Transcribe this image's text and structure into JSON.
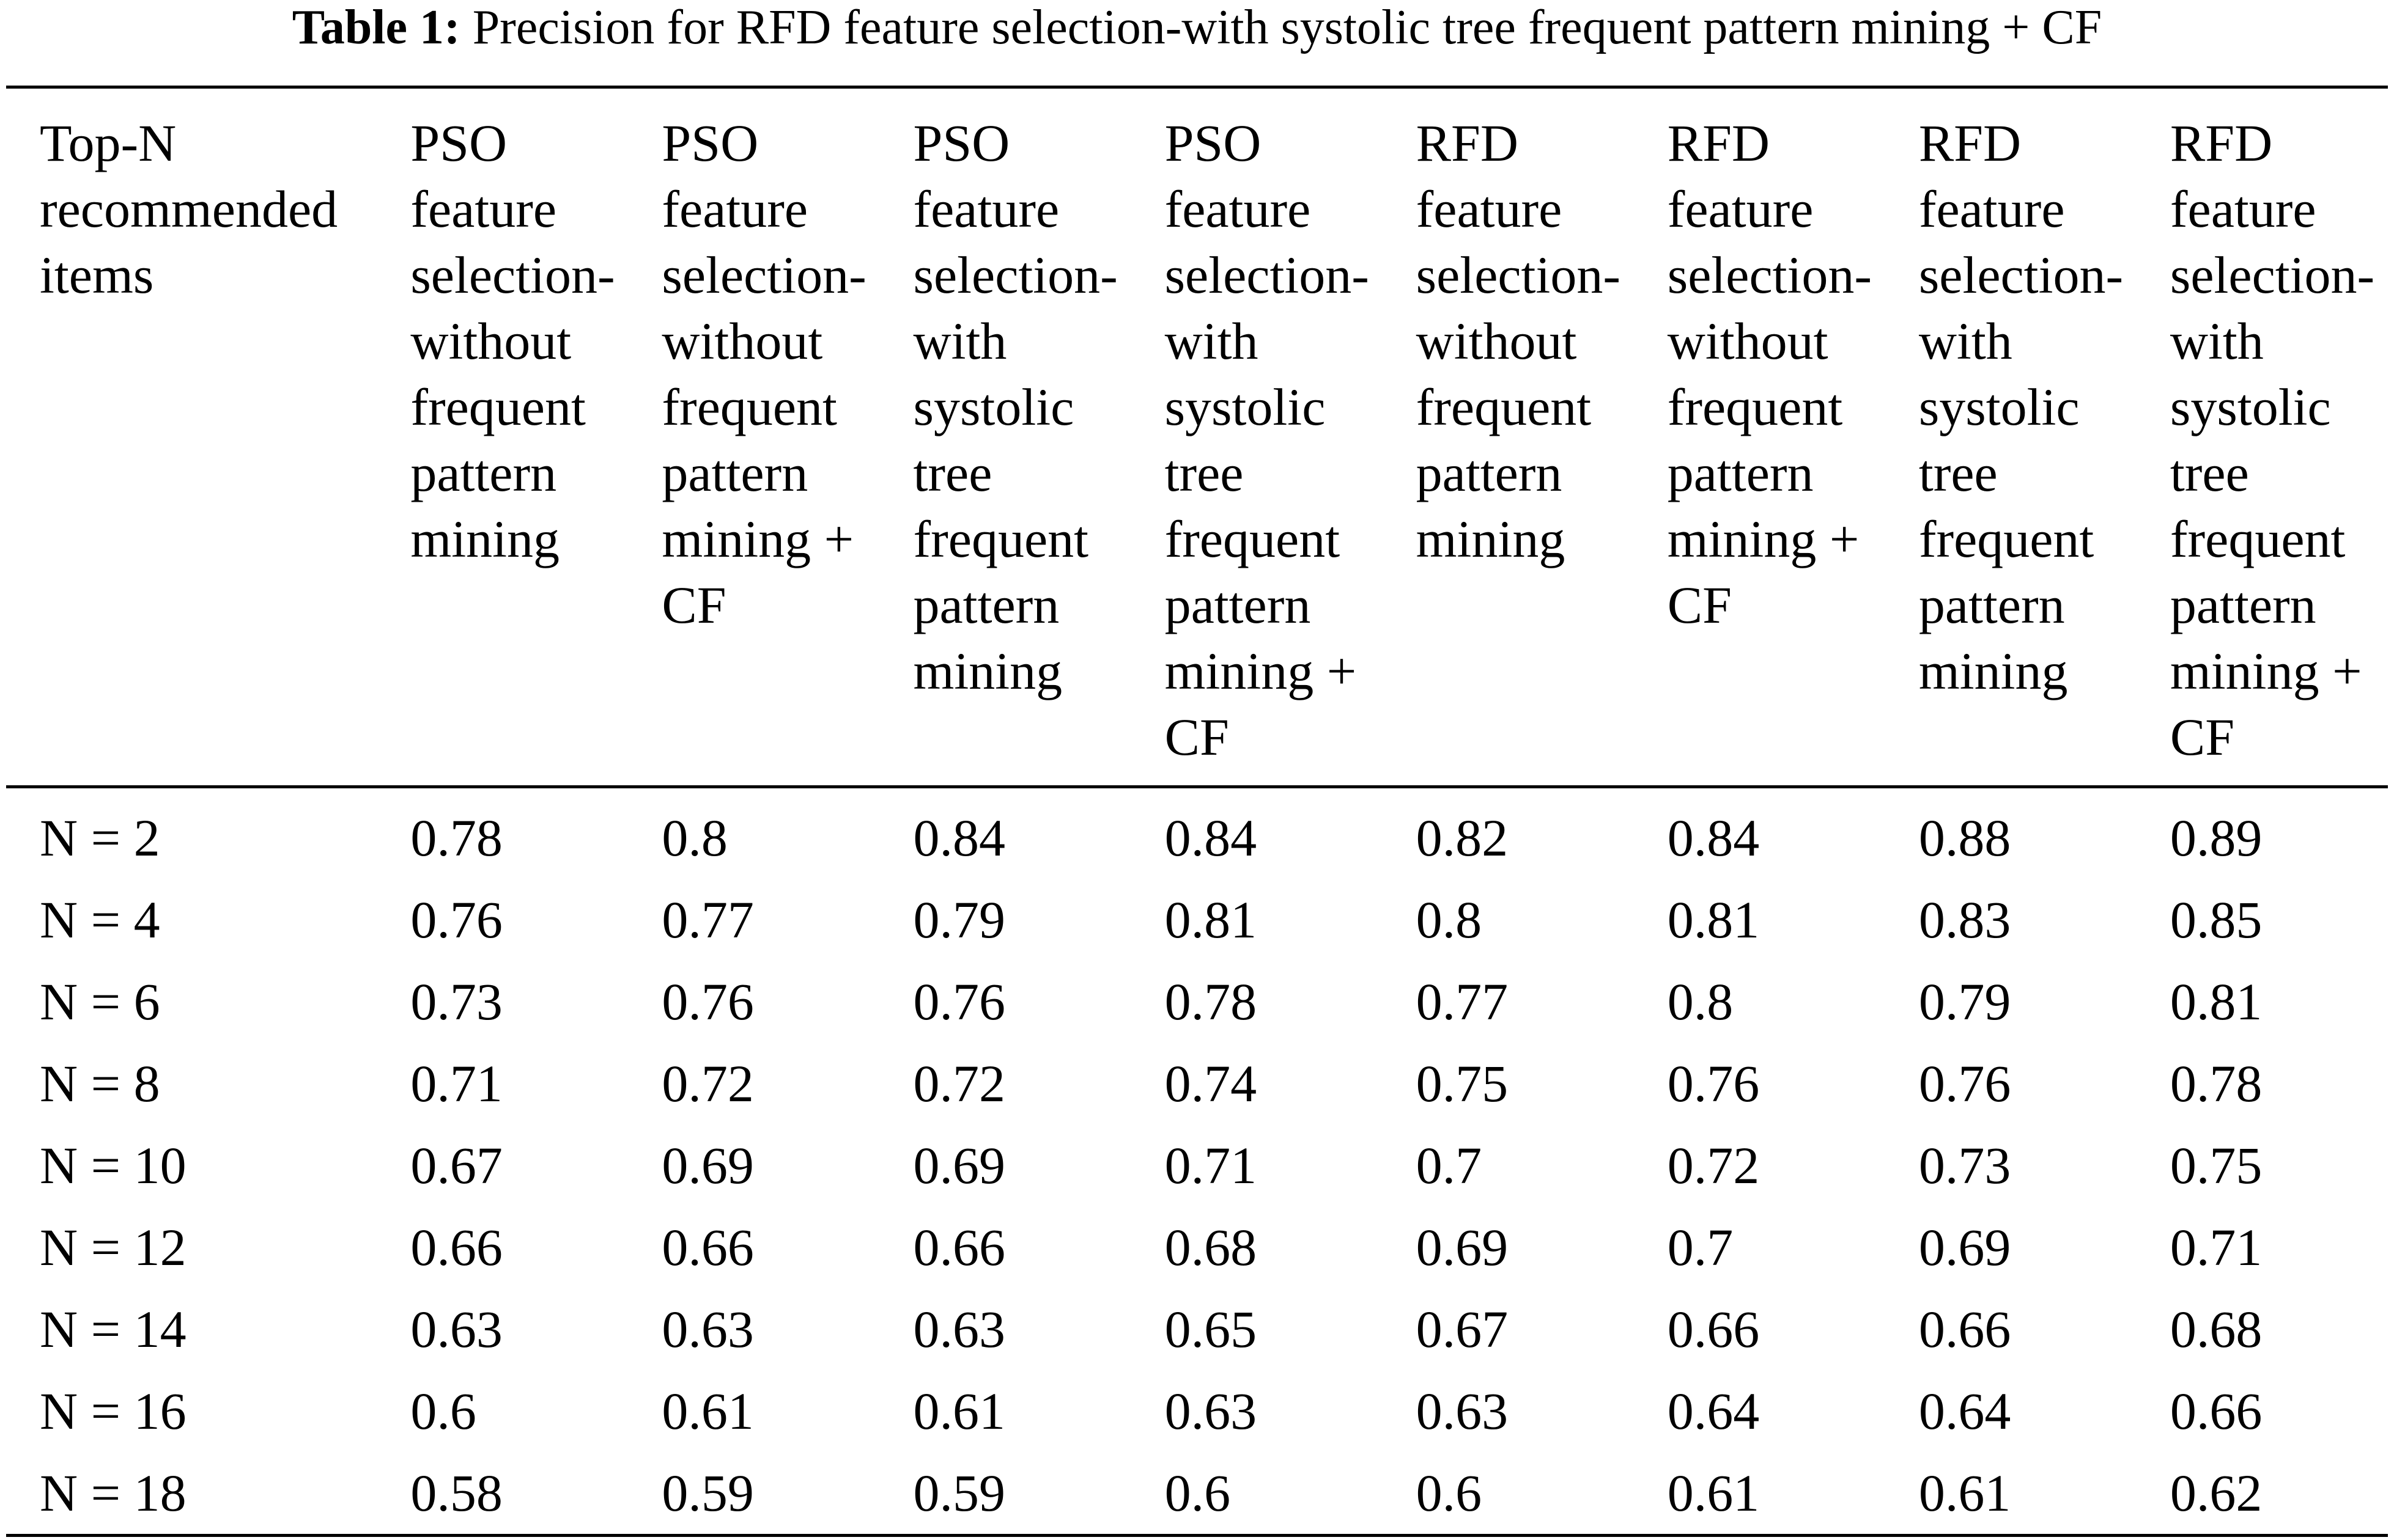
{
  "caption": {
    "label": "Table 1:",
    "text": "Precision for RFD feature selection-with systolic tree frequent pattern mining + CF"
  },
  "table": {
    "headers": [
      "Top-N\nrecommended\nitems",
      "PSO\nfeature\nselection-\nwithout\nfrequent\npattern\nmining",
      "PSO\nfeature\nselection-\nwithout\nfrequent\npattern\nmining +\nCF",
      "PSO\nfeature\nselection-\nwith\nsystolic\ntree\nfrequent\npattern\nmining",
      "PSO\nfeature\nselection-\nwith\nsystolic\ntree\nfrequent\npattern\nmining +\nCF",
      "RFD\nfeature\nselection-\nwithout\nfrequent\npattern\nmining",
      "RFD\nfeature\nselection-\nwithout\nfrequent\npattern\nmining +\nCF",
      "RFD\nfeature\nselection-\nwith\nsystolic\ntree\nfrequent\npattern\nmining",
      "RFD\nfeature\nselection-\nwith\nsystolic\ntree\nfrequent\npattern\nmining +\nCF"
    ],
    "rows": [
      [
        "N = 2",
        "0.78",
        "0.8",
        "0.84",
        "0.84",
        "0.82",
        "0.84",
        "0.88",
        "0.89"
      ],
      [
        "N = 4",
        "0.76",
        "0.77",
        "0.79",
        "0.81",
        "0.8",
        "0.81",
        "0.83",
        "0.85"
      ],
      [
        "N = 6",
        "0.73",
        "0.76",
        "0.76",
        "0.78",
        "0.77",
        "0.8",
        "0.79",
        "0.81"
      ],
      [
        "N = 8",
        "0.71",
        "0.72",
        "0.72",
        "0.74",
        "0.75",
        "0.76",
        "0.76",
        "0.78"
      ],
      [
        "N = 10",
        "0.67",
        "0.69",
        "0.69",
        "0.71",
        "0.7",
        "0.72",
        "0.73",
        "0.75"
      ],
      [
        "N = 12",
        "0.66",
        "0.66",
        "0.66",
        "0.68",
        "0.69",
        "0.7",
        "0.69",
        "0.71"
      ],
      [
        "N = 14",
        "0.63",
        "0.63",
        "0.63",
        "0.65",
        "0.67",
        "0.66",
        "0.66",
        "0.68"
      ],
      [
        "N = 16",
        "0.6",
        "0.61",
        "0.61",
        "0.63",
        "0.63",
        "0.64",
        "0.64",
        "0.66"
      ],
      [
        "N = 18",
        "0.58",
        "0.59",
        "0.59",
        "0.6",
        "0.6",
        "0.61",
        "0.61",
        "0.62"
      ]
    ]
  }
}
